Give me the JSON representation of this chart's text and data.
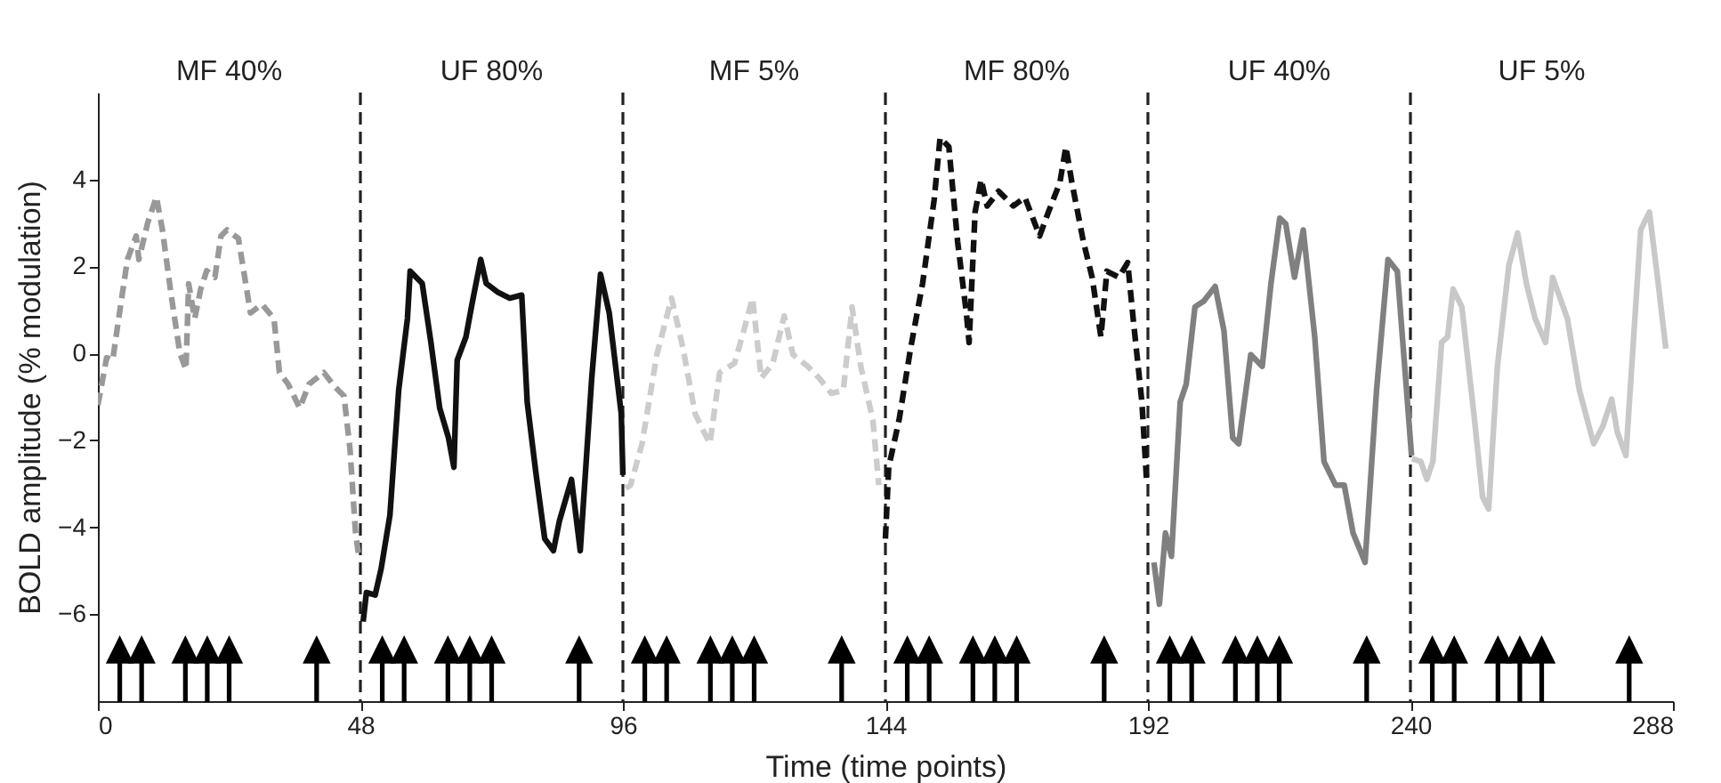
{
  "chart_data": {
    "type": "line",
    "xlabel": "Time (time points)",
    "ylabel": "BOLD amplitude (% modulation)",
    "xlim": [
      0,
      288
    ],
    "ylim": [
      -8,
      6
    ],
    "xticks": [
      0,
      48,
      96,
      144,
      192,
      240,
      288
    ],
    "yticks": [
      -6,
      -4,
      -2,
      0,
      2,
      4
    ],
    "series": [
      {
        "color": "#999999",
        "line_style": "dashed",
        "x": [
          0,
          0.5,
          1.6,
          2.7,
          3.8,
          5.4,
          7,
          7.5,
          9.1,
          10.7,
          11.8,
          13.4,
          15,
          16.1,
          16.6,
          17.7,
          18.8,
          19.9,
          21.4,
          22.5,
          23.6,
          25.7,
          27.9,
          30,
          32.2,
          33.2,
          34.8,
          36.9,
          38.6,
          41.3,
          43.4,
          45,
          46.1,
          47.1,
          47.7
        ],
        "values": [
          -1.19,
          -0.85,
          -0.1,
          -0.16,
          0.8,
          2.16,
          2.7,
          2.16,
          3.0,
          3.6,
          2.84,
          1.34,
          0,
          -0.37,
          1.6,
          0.8,
          1.48,
          1.9,
          1.75,
          2.7,
          2.84,
          2.64,
          0.93,
          1.13,
          0.8,
          -0.44,
          -0.71,
          -1.26,
          -0.71,
          -0.44,
          -0.78,
          -0.98,
          -2.2,
          -4.1,
          -4.67
        ]
      },
      {
        "color": "#111111",
        "line_style": "solid",
        "x": [
          48.5,
          49.1,
          50.7,
          51.8,
          53.4,
          55,
          56.6,
          57.1,
          59.3,
          60.9,
          62.5,
          64.1,
          65.1,
          65.7,
          67.3,
          68.4,
          70,
          71,
          73.2,
          75.3,
          77.5,
          78.5,
          80.1,
          81.7,
          83.3,
          84.4,
          86.6,
          88.2,
          90.3,
          91.9,
          93.5,
          95.7,
          96
        ],
        "values": [
          -6.17,
          -5.5,
          -5.56,
          -4.95,
          -3.72,
          -0.85,
          0.8,
          1.89,
          1.61,
          0.25,
          -1.26,
          -1.94,
          -2.62,
          -0.16,
          0.38,
          1.13,
          2.16,
          1.61,
          1.4,
          1.27,
          1.34,
          -1.12,
          -2.76,
          -4.26,
          -4.54,
          -3.85,
          -2.9,
          -4.54,
          -0.57,
          1.82,
          0.93,
          -1.39,
          -2.8
        ]
      },
      {
        "color": "#cccccc",
        "line_style": "dashed",
        "x": [
          96.5,
          97.4,
          99.5,
          102.2,
          104.9,
          107,
          109.2,
          111.9,
          113.7,
          116.4,
          118.1,
          119.7,
          121.3,
          123.4,
          125.5,
          127.1,
          129.8,
          131.9,
          134.1,
          136.3,
          137.9,
          139.5,
          141.7,
          142.8
        ],
        "values": [
          -3.1,
          -3.03,
          -2.08,
          -0.03,
          1.27,
          0.11,
          -1.39,
          -2.08,
          -0.44,
          -0.23,
          0.52,
          1.27,
          -0.57,
          -0.23,
          0.86,
          -0.03,
          -0.3,
          -0.57,
          -0.92,
          -0.85,
          1.07,
          -0.3,
          -1.53,
          -3.03
        ]
      },
      {
        "color": "#111111",
        "line_style": "dashed",
        "x": [
          144,
          144.6,
          146.5,
          148.6,
          150.8,
          152.9,
          154,
          155.6,
          157.2,
          158.8,
          159.3,
          160.4,
          161.5,
          162.6,
          164.7,
          167.4,
          169.5,
          172.2,
          173.8,
          175.9,
          177,
          178.1,
          180.2,
          181.8,
          183.4,
          184.5,
          186.7,
          188.3,
          189.3,
          190.9,
          191.8
        ],
        "values": [
          -4.26,
          -2.62,
          -1.53,
          0.11,
          1.61,
          3.52,
          4.96,
          4.75,
          2.57,
          0.93,
          0.25,
          3.25,
          4.0,
          3.39,
          3.73,
          3.39,
          3.59,
          2.7,
          3.25,
          3.93,
          4.75,
          3.93,
          2.57,
          1.75,
          0.38,
          1.89,
          1.75,
          2.09,
          0.8,
          -1.12,
          -3.03
        ]
      },
      {
        "color": "#808080",
        "line_style": "solid",
        "x": [
          193.1,
          194.1,
          195.2,
          196.3,
          197.9,
          199,
          200.6,
          202.2,
          204.3,
          205.9,
          207.5,
          208.6,
          210.8,
          212.9,
          214.5,
          216.1,
          217.2,
          218.8,
          220.4,
          222.5,
          224.2,
          226.3,
          227.9,
          229.5,
          231.7,
          233.8,
          235.9,
          237.6,
          239.2,
          240.2
        ],
        "values": [
          -4.81,
          -5.77,
          -4.13,
          -4.67,
          -1.12,
          -0.71,
          1.07,
          1.2,
          1.54,
          0.52,
          -1.94,
          -2.08,
          -0.03,
          -0.3,
          1.61,
          3.11,
          2.98,
          1.75,
          2.84,
          0.38,
          -2.49,
          -3.03,
          -3.03,
          -4.13,
          -4.81,
          -0.85,
          2.16,
          1.89,
          -0.71,
          -2.35
        ]
      },
      {
        "color": "#c8c8c8",
        "line_style": "solid",
        "x": [
          240.3,
          241.9,
          243,
          244.1,
          245.7,
          246.8,
          247.8,
          249.4,
          251.6,
          253.2,
          254.3,
          255.9,
          258,
          259.6,
          261.2,
          262.8,
          264.7,
          266,
          268.7,
          270.9,
          273.5,
          275.2,
          276.8,
          277.8,
          279.4,
          282.1,
          283.7,
          285.3,
          286.7
        ],
        "values": [
          -2.42,
          -2.49,
          -2.9,
          -2.49,
          0.25,
          0.38,
          1.48,
          1.07,
          -1.39,
          -3.31,
          -3.58,
          -0.3,
          2.02,
          2.77,
          1.61,
          0.8,
          0.25,
          1.75,
          0.8,
          -0.85,
          -2.08,
          -1.67,
          -1.05,
          -1.8,
          -2.35,
          2.84,
          3.25,
          1.61,
          0.11
        ]
      },
      {
        "type": "scatter",
        "marker": "triangle",
        "color": "#000000",
        "x": [
          4,
          8,
          16,
          20,
          24,
          40,
          52,
          56,
          64,
          68,
          72,
          88,
          100,
          104,
          112,
          116,
          120,
          136,
          148,
          152,
          160,
          164,
          168,
          184,
          196,
          200,
          208,
          212,
          216,
          232,
          244,
          248,
          256,
          260,
          264,
          280
        ],
        "values": [
          -7.25,
          -7.25,
          -7.25,
          -7.25,
          -7.25,
          -7.25,
          -7.25,
          -7.25,
          -7.25,
          -7.25,
          -7.25,
          -7.25,
          -7.25,
          -7.25,
          -7.25,
          -7.25,
          -7.25,
          -7.25,
          -7.25,
          -7.25,
          -7.25,
          -7.25,
          -7.25,
          -7.25,
          -7.25,
          -7.25,
          -7.25,
          -7.25,
          -7.25,
          -7.25,
          -7.25,
          -7.25,
          -7.25,
          -7.25,
          -7.25,
          -7.25
        ]
      }
    ],
    "annotations": [
      "MF 40%",
      "UF 80%",
      "MF 5%",
      "MF 80%",
      "UF 40%",
      "UF 5%"
    ],
    "ref_lines": [
      {
        "axis": "x",
        "value": 48,
        "color": "#222222",
        "line_style": "dashed"
      },
      {
        "axis": "x",
        "value": 96,
        "color": "#222222",
        "line_style": "dashed"
      },
      {
        "axis": "x",
        "value": 144,
        "color": "#222222",
        "line_style": "dashed"
      },
      {
        "axis": "x",
        "value": 192,
        "color": "#222222",
        "line_style": "dashed"
      },
      {
        "axis": "x",
        "value": 240,
        "color": "#222222",
        "line_style": "dashed"
      }
    ]
  }
}
